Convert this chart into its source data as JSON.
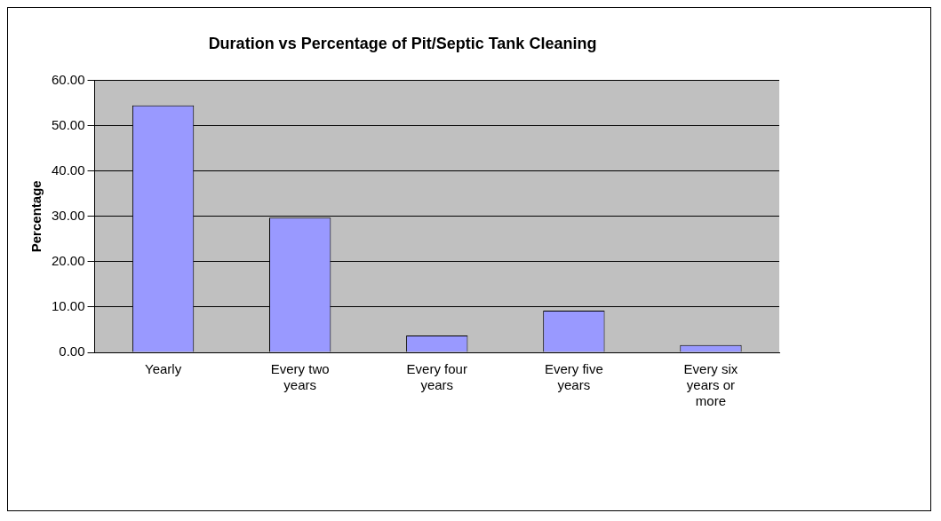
{
  "chart_data": {
    "type": "bar",
    "title": "Duration vs Percentage of Pit/Septic Tank Cleaning",
    "ylabel": "Percentage",
    "categories": [
      "Yearly",
      "Every two years",
      "Every four years",
      "Every five years",
      "Every six years or more"
    ],
    "values": [
      54.5,
      29.7,
      3.7,
      9.2,
      1.6
    ],
    "color": "#9999ff",
    "ylim": [
      0,
      60
    ],
    "yticks": [
      {
        "value": 0,
        "label": "0.00"
      },
      {
        "value": 10,
        "label": "10.00"
      },
      {
        "value": 20,
        "label": "20.00"
      },
      {
        "value": 30,
        "label": "30.00"
      },
      {
        "value": 40,
        "label": "40.00"
      },
      {
        "value": 50,
        "label": "50.00"
      },
      {
        "value": 60,
        "label": "60.00"
      }
    ],
    "grid": "y",
    "legend": false
  }
}
